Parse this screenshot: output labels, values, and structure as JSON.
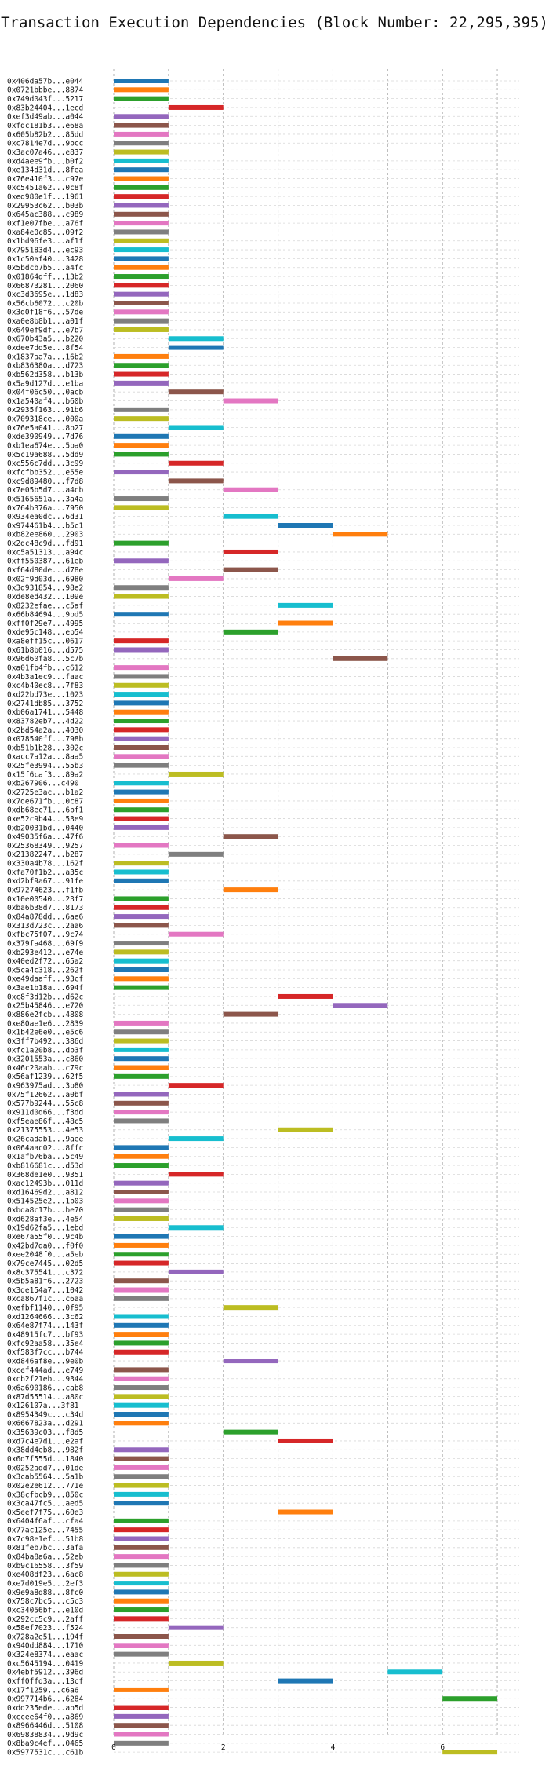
{
  "chart_data": {
    "type": "gantt",
    "title": "Transaction Execution Dependencies (Block Number: 22,295,395)",
    "x_ticks": [
      0,
      2,
      4,
      6
    ],
    "xlim": [
      0,
      7.4
    ],
    "grid": true,
    "colors": [
      "#1f77b4",
      "#ff7f0e",
      "#2ca02c",
      "#d62728",
      "#9467bd",
      "#8c564b",
      "#e377c2",
      "#7f7f7f",
      "#bcbd22",
      "#17becf"
    ],
    "rows": [
      {
        "label": "0x406da57b...e044",
        "start": 0,
        "end": 1
      },
      {
        "label": "0x0721bbbe...8874",
        "start": 0,
        "end": 1
      },
      {
        "label": "0x749d043f...5217",
        "start": 0,
        "end": 1
      },
      {
        "label": "0x83b24404...1ecd",
        "start": 1,
        "end": 2
      },
      {
        "label": "0xef3d49ab...a044",
        "start": 0,
        "end": 1
      },
      {
        "label": "0xfdc181b3...e68a",
        "start": 0,
        "end": 1
      },
      {
        "label": "0x605b82b2...85dd",
        "start": 0,
        "end": 1
      },
      {
        "label": "0xc7814e7d...9bcc",
        "start": 0,
        "end": 1
      },
      {
        "label": "0x3ac07a46...e837",
        "start": 0,
        "end": 1
      },
      {
        "label": "0xd4aee9fb...b0f2",
        "start": 0,
        "end": 1
      },
      {
        "label": "0xe134d31d...8fea",
        "start": 0,
        "end": 1
      },
      {
        "label": "0x76e410f3...c97e",
        "start": 0,
        "end": 1
      },
      {
        "label": "0xc5451a62...0c8f",
        "start": 0,
        "end": 1
      },
      {
        "label": "0xed980e1f...1961",
        "start": 0,
        "end": 1
      },
      {
        "label": "0x29953c62...b03b",
        "start": 0,
        "end": 1
      },
      {
        "label": "0x645ac388...c989",
        "start": 0,
        "end": 1
      },
      {
        "label": "0xf1e07fbe...a76f",
        "start": 0,
        "end": 1
      },
      {
        "label": "0xa84e0c85...09f2",
        "start": 0,
        "end": 1
      },
      {
        "label": "0x1bd96fe3...af1f",
        "start": 0,
        "end": 1
      },
      {
        "label": "0x795183d4...ec93",
        "start": 0,
        "end": 1
      },
      {
        "label": "0x1c50af40...3428",
        "start": 0,
        "end": 1
      },
      {
        "label": "0x5bdcb7b5...a4fc",
        "start": 0,
        "end": 1
      },
      {
        "label": "0x01864dff...13b2",
        "start": 0,
        "end": 1
      },
      {
        "label": "0x66873281...2060",
        "start": 0,
        "end": 1
      },
      {
        "label": "0xc3d3695e...1d83",
        "start": 0,
        "end": 1
      },
      {
        "label": "0x56cb6072...c20b",
        "start": 0,
        "end": 1
      },
      {
        "label": "0x3d0f18f6...57de",
        "start": 0,
        "end": 1
      },
      {
        "label": "0xa0e8b8b1...a01f",
        "start": 0,
        "end": 1
      },
      {
        "label": "0x649ef9df...e7b7",
        "start": 0,
        "end": 1
      },
      {
        "label": "0x670b43a5...b220",
        "start": 1,
        "end": 2
      },
      {
        "label": "0xdee7dd5e...8f54",
        "start": 1,
        "end": 2
      },
      {
        "label": "0x1837aa7a...16b2",
        "start": 0,
        "end": 1
      },
      {
        "label": "0xb836380a...d723",
        "start": 0,
        "end": 1
      },
      {
        "label": "0xb562d358...b13b",
        "start": 0,
        "end": 1
      },
      {
        "label": "0x5a9d127d...e1ba",
        "start": 0,
        "end": 1
      },
      {
        "label": "0x04f06c50...0acb",
        "start": 1,
        "end": 2
      },
      {
        "label": "0x1a540af4...b60b",
        "start": 2,
        "end": 3
      },
      {
        "label": "0x2935f163...91b6",
        "start": 0,
        "end": 1
      },
      {
        "label": "0x709318ce...000a",
        "start": 0,
        "end": 1
      },
      {
        "label": "0x76e5a041...8b27",
        "start": 1,
        "end": 2
      },
      {
        "label": "0xde390949...7d76",
        "start": 0,
        "end": 1
      },
      {
        "label": "0xb1ea674e...5ba0",
        "start": 0,
        "end": 1
      },
      {
        "label": "0x5c19a688...5dd9",
        "start": 0,
        "end": 1
      },
      {
        "label": "0xc556c7dd...3c99",
        "start": 1,
        "end": 2
      },
      {
        "label": "0xfcfbb352...e55e",
        "start": 0,
        "end": 1
      },
      {
        "label": "0xc9d89480...f7d8",
        "start": 1,
        "end": 2
      },
      {
        "label": "0x7e05b5d7...a4cb",
        "start": 2,
        "end": 3
      },
      {
        "label": "0x5165651a...3a4a",
        "start": 0,
        "end": 1
      },
      {
        "label": "0x764b376a...7950",
        "start": 0,
        "end": 1
      },
      {
        "label": "0x934ea0dc...6d31",
        "start": 2,
        "end": 3
      },
      {
        "label": "0x974461b4...b5c1",
        "start": 3,
        "end": 4
      },
      {
        "label": "0xb82ee860...2903",
        "start": 4,
        "end": 5
      },
      {
        "label": "0x2dc48c9d...fd91",
        "start": 0,
        "end": 1
      },
      {
        "label": "0xc5a51313...a94c",
        "start": 2,
        "end": 3
      },
      {
        "label": "0xff550387...61eb",
        "start": 0,
        "end": 1
      },
      {
        "label": "0xf64d80de...d78e",
        "start": 2,
        "end": 3
      },
      {
        "label": "0x02f9d03d...6980",
        "start": 1,
        "end": 2
      },
      {
        "label": "0x3d931854...98e2",
        "start": 0,
        "end": 1
      },
      {
        "label": "0xde8ed432...109e",
        "start": 0,
        "end": 1
      },
      {
        "label": "0x8232efae...c5af",
        "start": 3,
        "end": 4
      },
      {
        "label": "0x66b84694...9bd5",
        "start": 0,
        "end": 1
      },
      {
        "label": "0xff0f29e7...4995",
        "start": 3,
        "end": 4
      },
      {
        "label": "0xde95c148...eb54",
        "start": 2,
        "end": 3
      },
      {
        "label": "0xa8eff15c...0617",
        "start": 0,
        "end": 1
      },
      {
        "label": "0x61b8b016...d575",
        "start": 0,
        "end": 1
      },
      {
        "label": "0x96d60fa8...5c7b",
        "start": 4,
        "end": 5
      },
      {
        "label": "0xa01fb4fb...c612",
        "start": 0,
        "end": 1
      },
      {
        "label": "0x4b3a1ec9...faac",
        "start": 0,
        "end": 1
      },
      {
        "label": "0xc4b40ec8...7f83",
        "start": 0,
        "end": 1
      },
      {
        "label": "0xd22bd73e...1023",
        "start": 0,
        "end": 1
      },
      {
        "label": "0x2741db85...3752",
        "start": 0,
        "end": 1
      },
      {
        "label": "0xb06a1741...5448",
        "start": 0,
        "end": 1
      },
      {
        "label": "0x83782eb7...4d22",
        "start": 0,
        "end": 1
      },
      {
        "label": "0x2bd54a2a...4030",
        "start": 0,
        "end": 1
      },
      {
        "label": "0x078540ff...798b",
        "start": 0,
        "end": 1
      },
      {
        "label": "0xb51b1b28...302c",
        "start": 0,
        "end": 1
      },
      {
        "label": "0xacc7a12a...8aa5",
        "start": 0,
        "end": 1
      },
      {
        "label": "0x25fe3994...55b3",
        "start": 0,
        "end": 1
      },
      {
        "label": "0x15f6caf3...89a2",
        "start": 1,
        "end": 2
      },
      {
        "label": "0xb267906...c490",
        "start": 0,
        "end": 1
      },
      {
        "label": "0x2725e3ac...b1a2",
        "start": 0,
        "end": 1
      },
      {
        "label": "0x7de671fb...0c87",
        "start": 0,
        "end": 1
      },
      {
        "label": "0xdb68ec71...6bf1",
        "start": 0,
        "end": 1
      },
      {
        "label": "0xe52c9b44...53e9",
        "start": 0,
        "end": 1
      },
      {
        "label": "0xb20031bd...0440",
        "start": 0,
        "end": 1
      },
      {
        "label": "0x49035f6a...47f6",
        "start": 2,
        "end": 3
      },
      {
        "label": "0x25368349...9257",
        "start": 0,
        "end": 1
      },
      {
        "label": "0x21382247...b287",
        "start": 1,
        "end": 2
      },
      {
        "label": "0x330a4b78...162f",
        "start": 0,
        "end": 1
      },
      {
        "label": "0xfa70f1b2...a35c",
        "start": 0,
        "end": 1
      },
      {
        "label": "0xd2bf9a67...91fe",
        "start": 0,
        "end": 1
      },
      {
        "label": "0x97274623...f1fb",
        "start": 2,
        "end": 3
      },
      {
        "label": "0x10e00540...23f7",
        "start": 0,
        "end": 1
      },
      {
        "label": "0xba6b38d7...8173",
        "start": 0,
        "end": 1
      },
      {
        "label": "0x84a878dd...6ae6",
        "start": 0,
        "end": 1
      },
      {
        "label": "0x313d723c...2aa6",
        "start": 0,
        "end": 1
      },
      {
        "label": "0xfbc75f07...9c74",
        "start": 1,
        "end": 2
      },
      {
        "label": "0x379fa468...69f9",
        "start": 0,
        "end": 1
      },
      {
        "label": "0xb293e412...e74e",
        "start": 0,
        "end": 1
      },
      {
        "label": "0x40ed2f72...65a2",
        "start": 0,
        "end": 1
      },
      {
        "label": "0x5ca4c318...262f",
        "start": 0,
        "end": 1
      },
      {
        "label": "0xe49daaff...93cf",
        "start": 0,
        "end": 1
      },
      {
        "label": "0x3ae1b18a...694f",
        "start": 0,
        "end": 1
      },
      {
        "label": "0xc8f3d12b...d62c",
        "start": 3,
        "end": 4
      },
      {
        "label": "0x25b45846...e720",
        "start": 4,
        "end": 5
      },
      {
        "label": "0x886e2fcb...4808",
        "start": 2,
        "end": 3
      },
      {
        "label": "0xe80ae1e6...2839",
        "start": 0,
        "end": 1
      },
      {
        "label": "0x1b42e6e0...e5c6",
        "start": 0,
        "end": 1
      },
      {
        "label": "0x3ff7b492...386d",
        "start": 0,
        "end": 1
      },
      {
        "label": "0xfc1a20b8...db3f",
        "start": 0,
        "end": 1
      },
      {
        "label": "0x3201553a...c860",
        "start": 0,
        "end": 1
      },
      {
        "label": "0x46c20aab...c79c",
        "start": 0,
        "end": 1
      },
      {
        "label": "0x56af1239...62f5",
        "start": 0,
        "end": 1
      },
      {
        "label": "0x963975ad...3b80",
        "start": 1,
        "end": 2
      },
      {
        "label": "0x75f12662...a0bf",
        "start": 0,
        "end": 1
      },
      {
        "label": "0x577b9244...55c8",
        "start": 0,
        "end": 1
      },
      {
        "label": "0x911d0d66...f3dd",
        "start": 0,
        "end": 1
      },
      {
        "label": "0xf5eae86f...48c5",
        "start": 0,
        "end": 1
      },
      {
        "label": "0x21375553...4e53",
        "start": 3,
        "end": 4
      },
      {
        "label": "0x26cadab1...9aee",
        "start": 1,
        "end": 2
      },
      {
        "label": "0x064aac02...8ffc",
        "start": 0,
        "end": 1
      },
      {
        "label": "0x1afb76ba...5c49",
        "start": 0,
        "end": 1
      },
      {
        "label": "0xb816681c...d53d",
        "start": 0,
        "end": 1
      },
      {
        "label": "0x368de1e0...9351",
        "start": 1,
        "end": 2
      },
      {
        "label": "0xac12493b...011d",
        "start": 0,
        "end": 1
      },
      {
        "label": "0xd16469d2...a812",
        "start": 0,
        "end": 1
      },
      {
        "label": "0x514525e2...1b03",
        "start": 0,
        "end": 1
      },
      {
        "label": "0xbda8c17b...be70",
        "start": 0,
        "end": 1
      },
      {
        "label": "0xd628af3e...4e54",
        "start": 0,
        "end": 1
      },
      {
        "label": "0x19d62fa5...1ebd",
        "start": 1,
        "end": 2
      },
      {
        "label": "0xe67a55f0...9c4b",
        "start": 0,
        "end": 1
      },
      {
        "label": "0x42bd7da0...f0f0",
        "start": 0,
        "end": 1
      },
      {
        "label": "0xee2048f0...a5eb",
        "start": 0,
        "end": 1
      },
      {
        "label": "0x79ce7445...02d5",
        "start": 0,
        "end": 1
      },
      {
        "label": "0x8c375541...c372",
        "start": 1,
        "end": 2
      },
      {
        "label": "0x5b5a81f6...2723",
        "start": 0,
        "end": 1
      },
      {
        "label": "0x3de154a7...1042",
        "start": 0,
        "end": 1
      },
      {
        "label": "0xca867f1c...c6aa",
        "start": 0,
        "end": 1
      },
      {
        "label": "0xefbf1140...0f95",
        "start": 2,
        "end": 3
      },
      {
        "label": "0xd1264666...3c62",
        "start": 0,
        "end": 1
      },
      {
        "label": "0x64e87f74...143f",
        "start": 0,
        "end": 1
      },
      {
        "label": "0x48915fc7...bf93",
        "start": 0,
        "end": 1
      },
      {
        "label": "0xfc92aa58...35e4",
        "start": 0,
        "end": 1
      },
      {
        "label": "0xf583f7cc...b744",
        "start": 0,
        "end": 1
      },
      {
        "label": "0xd846af8e...9e0b",
        "start": 2,
        "end": 3
      },
      {
        "label": "0xcef444ad...e749",
        "start": 0,
        "end": 1
      },
      {
        "label": "0xcb2f21eb...9344",
        "start": 0,
        "end": 1
      },
      {
        "label": "0x6a690186...cab8",
        "start": 0,
        "end": 1
      },
      {
        "label": "0x87d55514...a80c",
        "start": 0,
        "end": 1
      },
      {
        "label": "0x126107a...3f81",
        "start": 0,
        "end": 1
      },
      {
        "label": "0x8954349c...c34d",
        "start": 0,
        "end": 1
      },
      {
        "label": "0x6667823a...d291",
        "start": 0,
        "end": 1
      },
      {
        "label": "0x35639c03...f8d5",
        "start": 2,
        "end": 3
      },
      {
        "label": "0xd7c4e7d1...e2af",
        "start": 3,
        "end": 4
      },
      {
        "label": "0x38dd4eb8...982f",
        "start": 0,
        "end": 1
      },
      {
        "label": "0x6d7f555d...1840",
        "start": 0,
        "end": 1
      },
      {
        "label": "0x0252add7...01de",
        "start": 0,
        "end": 1
      },
      {
        "label": "0x3cab5564...5a1b",
        "start": 0,
        "end": 1
      },
      {
        "label": "0x02e2e612...771e",
        "start": 0,
        "end": 1
      },
      {
        "label": "0x38cfbcb9...850c",
        "start": 0,
        "end": 1
      },
      {
        "label": "0x3ca47fc5...aed5",
        "start": 0,
        "end": 1
      },
      {
        "label": "0x5eef7f75...60e3",
        "start": 3,
        "end": 4
      },
      {
        "label": "0x6404f6af...cfa4",
        "start": 0,
        "end": 1
      },
      {
        "label": "0x77ac125e...7455",
        "start": 0,
        "end": 1
      },
      {
        "label": "0x7c98e1ef...51b8",
        "start": 0,
        "end": 1
      },
      {
        "label": "0x81feb7bc...3afa",
        "start": 0,
        "end": 1
      },
      {
        "label": "0x84ba8a6a...52eb",
        "start": 0,
        "end": 1
      },
      {
        "label": "0xb9c16558...3f59",
        "start": 0,
        "end": 1
      },
      {
        "label": "0xe408df23...6ac8",
        "start": 0,
        "end": 1
      },
      {
        "label": "0xe7d019e5...2ef3",
        "start": 0,
        "end": 1
      },
      {
        "label": "0x9e9a8d88...8fc0",
        "start": 0,
        "end": 1
      },
      {
        "label": "0x758c7bc5...c5c3",
        "start": 0,
        "end": 1
      },
      {
        "label": "0xc34056bf...e10d",
        "start": 0,
        "end": 1
      },
      {
        "label": "0x292cc5c9...2aff",
        "start": 0,
        "end": 1
      },
      {
        "label": "0x58ef7023...f524",
        "start": 1,
        "end": 2
      },
      {
        "label": "0x728a2e51...194f",
        "start": 0,
        "end": 1
      },
      {
        "label": "0x940dd884...1710",
        "start": 0,
        "end": 1
      },
      {
        "label": "0x324e8374...eaac",
        "start": 0,
        "end": 1
      },
      {
        "label": "0xc5645194...0419",
        "start": 1,
        "end": 2
      },
      {
        "label": "0x4ebf5912...396d",
        "start": 5,
        "end": 6
      },
      {
        "label": "0xff0ffd3a...13cf",
        "start": 3,
        "end": 4
      },
      {
        "label": "0x17f1259...c6a6",
        "start": 0,
        "end": 1
      },
      {
        "label": "0x997714b6...6284",
        "start": 6,
        "end": 7
      },
      {
        "label": "0xdd235ede...ab5d",
        "start": 0,
        "end": 1
      },
      {
        "label": "0xccee64f0...a869",
        "start": 0,
        "end": 1
      },
      {
        "label": "0x8966446d...5108",
        "start": 0,
        "end": 1
      },
      {
        "label": "0x69838834...9d9c",
        "start": 0,
        "end": 1
      },
      {
        "label": "0x8ba9c4ef...0465",
        "start": 0,
        "end": 1
      },
      {
        "label": "0x5977531c...c61b",
        "start": 6,
        "end": 7
      }
    ]
  }
}
